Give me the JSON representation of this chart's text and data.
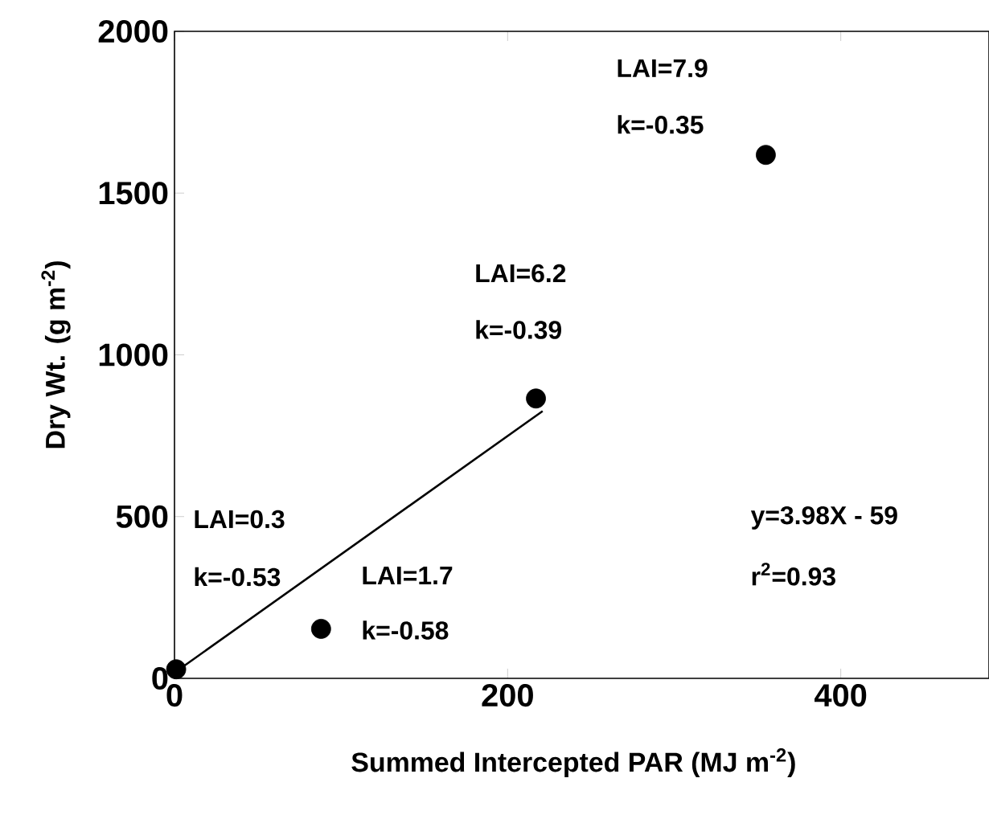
{
  "chart_data": {
    "type": "scatter",
    "xlabel": "Summed Intercepted PAR (MJ m$^{-2}$)",
    "ylabel": "Dry Wt. (g m$^{-2}$)",
    "xlim": [
      0,
      489
    ],
    "ylim": [
      0,
      2000
    ],
    "xticks": [
      0,
      200,
      400
    ],
    "yticks": [
      0,
      500,
      1000,
      1500,
      2000
    ],
    "marker": "circle",
    "series": [
      {
        "color": "#000000",
        "x": [
          1,
          88,
          217,
          355
        ],
        "values": [
          28,
          153,
          865,
          1618
        ]
      },
      {
        "type": "line",
        "color": "#000000",
        "marker": "none",
        "x": [
          1,
          221
        ],
        "values": [
          21,
          826
        ]
      }
    ],
    "annotations": [
      "LAI=0.3",
      "k=-0.53",
      "LAI=1.7",
      "k=-0.58",
      "LAI=6.2",
      "k=-0.39",
      "LAI=7.9",
      "k=-0.35",
      "y=3.98X - 59",
      "r$^{2}$=0.93"
    ]
  }
}
